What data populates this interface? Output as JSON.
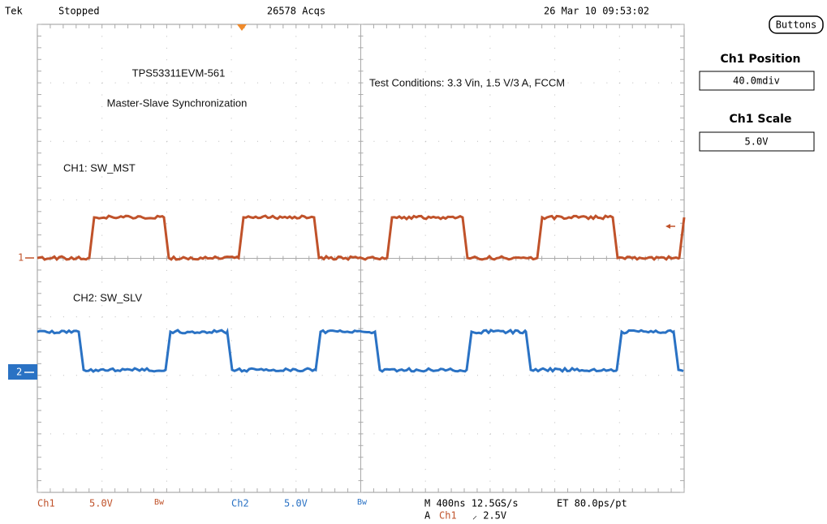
{
  "header": {
    "brand": "Tek",
    "status": "Stopped",
    "acquisitions": "26578 Acqs",
    "datetime": "26 Mar 10 09:53:02"
  },
  "side_panel": {
    "button": "Buttons",
    "position_label": "Ch1 Position",
    "position_value": "40.0mdiv",
    "scale_label": "Ch1 Scale",
    "scale_value": "5.0V"
  },
  "annotations": {
    "board": "TPS53311EVM-561",
    "mode": "Master-Slave Synchronization",
    "conditions": "Test Conditions: 3.3 Vin, 1.5 V/3 A, FCCM",
    "ch1_label": "CH1: SW_MST",
    "ch2_label": "CH2: SW_SLV"
  },
  "markers": {
    "ch1": "1",
    "ch2": "2"
  },
  "footer": {
    "ch1": "Ch1",
    "ch1_scale": "5.0V",
    "ch1_bw": "Bw",
    "ch2": "Ch2",
    "ch2_scale": "5.0V",
    "ch2_bw": "Bw",
    "timebase": "M 400ns 12.5GS/s",
    "et": "ET 80.0ps/pt",
    "trigger_prefix": "A",
    "trigger_source": "Ch1",
    "trigger_level": "⸝ 2.5V"
  }
}
